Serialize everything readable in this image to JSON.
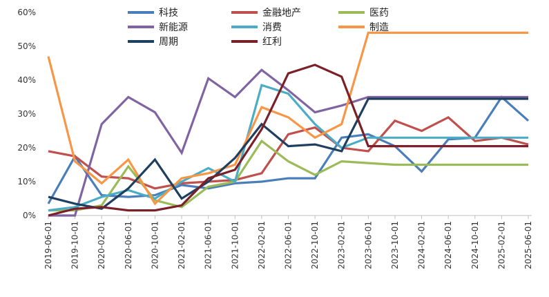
{
  "chart_data": {
    "type": "line",
    "title": "",
    "xlabel": "",
    "ylabel": "",
    "ylim": [
      0,
      60
    ],
    "yticks": [
      0,
      10,
      20,
      30,
      40,
      50,
      60
    ],
    "ytick_labels": [
      "0%",
      "10%",
      "20%",
      "30%",
      "40%",
      "50%",
      "60%"
    ],
    "grid": false,
    "legend_position": "top-center",
    "categories": [
      "2019-06-01",
      "2019-10-01",
      "2020-02-01",
      "2020-06-01",
      "2020-10-01",
      "2021-02-01",
      "2021-06-01",
      "2021-10-01",
      "2022-02-01",
      "2022-06-01",
      "2022-10-01",
      "2023-02-01",
      "2023-06-01",
      "2023-10-01",
      "2024-02-01",
      "2024-06-01",
      "2024-10-01",
      "2025-02-01",
      "2025-06-01"
    ],
    "series": [
      {
        "name": "科技",
        "color": "#4A7EBB",
        "values": [
          3.5,
          17.5,
          6,
          5.5,
          6,
          9,
          8,
          9.5,
          10,
          11,
          11,
          23,
          24,
          20.5,
          13,
          22.5,
          23,
          35,
          28
        ]
      },
      {
        "name": "金融地产",
        "color": "#C0504D",
        "values": [
          19,
          17.5,
          11.5,
          11,
          8,
          9.5,
          10,
          10.5,
          12.5,
          24,
          26,
          20,
          19,
          28,
          25,
          29,
          22,
          23,
          21
        ]
      },
      {
        "name": "医药",
        "color": "#9BBB59",
        "values": [
          1.5,
          1.5,
          3,
          14.5,
          4.5,
          2.5,
          8.5,
          10,
          22,
          16,
          12,
          16,
          15.5,
          15,
          15,
          15,
          15,
          15,
          15
        ]
      },
      {
        "name": "新能源",
        "color": "#8064A2",
        "values": [
          0,
          0,
          27,
          35,
          30.5,
          18.5,
          40.5,
          35,
          43,
          37,
          30.5,
          32.5,
          35,
          35,
          35,
          35,
          35,
          35,
          35
        ]
      },
      {
        "name": "消费",
        "color": "#4BACC6",
        "values": [
          1.5,
          2.5,
          5.5,
          7.5,
          5,
          10,
          14,
          10,
          38.5,
          36,
          27,
          20,
          23,
          23,
          23,
          23,
          23,
          23,
          23
        ]
      },
      {
        "name": "制造",
        "color": "#F79646",
        "values": [
          47,
          16,
          9.5,
          16.5,
          3.5,
          11,
          12.5,
          15,
          32,
          29,
          23,
          27,
          54,
          54,
          54,
          54,
          54,
          54,
          54
        ]
      },
      {
        "name": "周期",
        "color": "#1F3F60",
        "values": [
          5.5,
          3.5,
          2,
          8,
          16.5,
          5,
          10,
          17,
          27,
          20.5,
          21,
          19,
          34.5,
          34.5,
          34.5,
          34.5,
          34.5,
          34.5,
          34.5
        ]
      },
      {
        "name": "红利",
        "color": "#7B2028",
        "values": [
          0,
          2,
          2.5,
          1.5,
          1.5,
          3,
          11,
          13.5,
          25.5,
          42,
          44.5,
          41,
          20.5,
          20.5,
          20.5,
          20.5,
          20.5,
          20.5,
          20.5
        ]
      }
    ]
  }
}
